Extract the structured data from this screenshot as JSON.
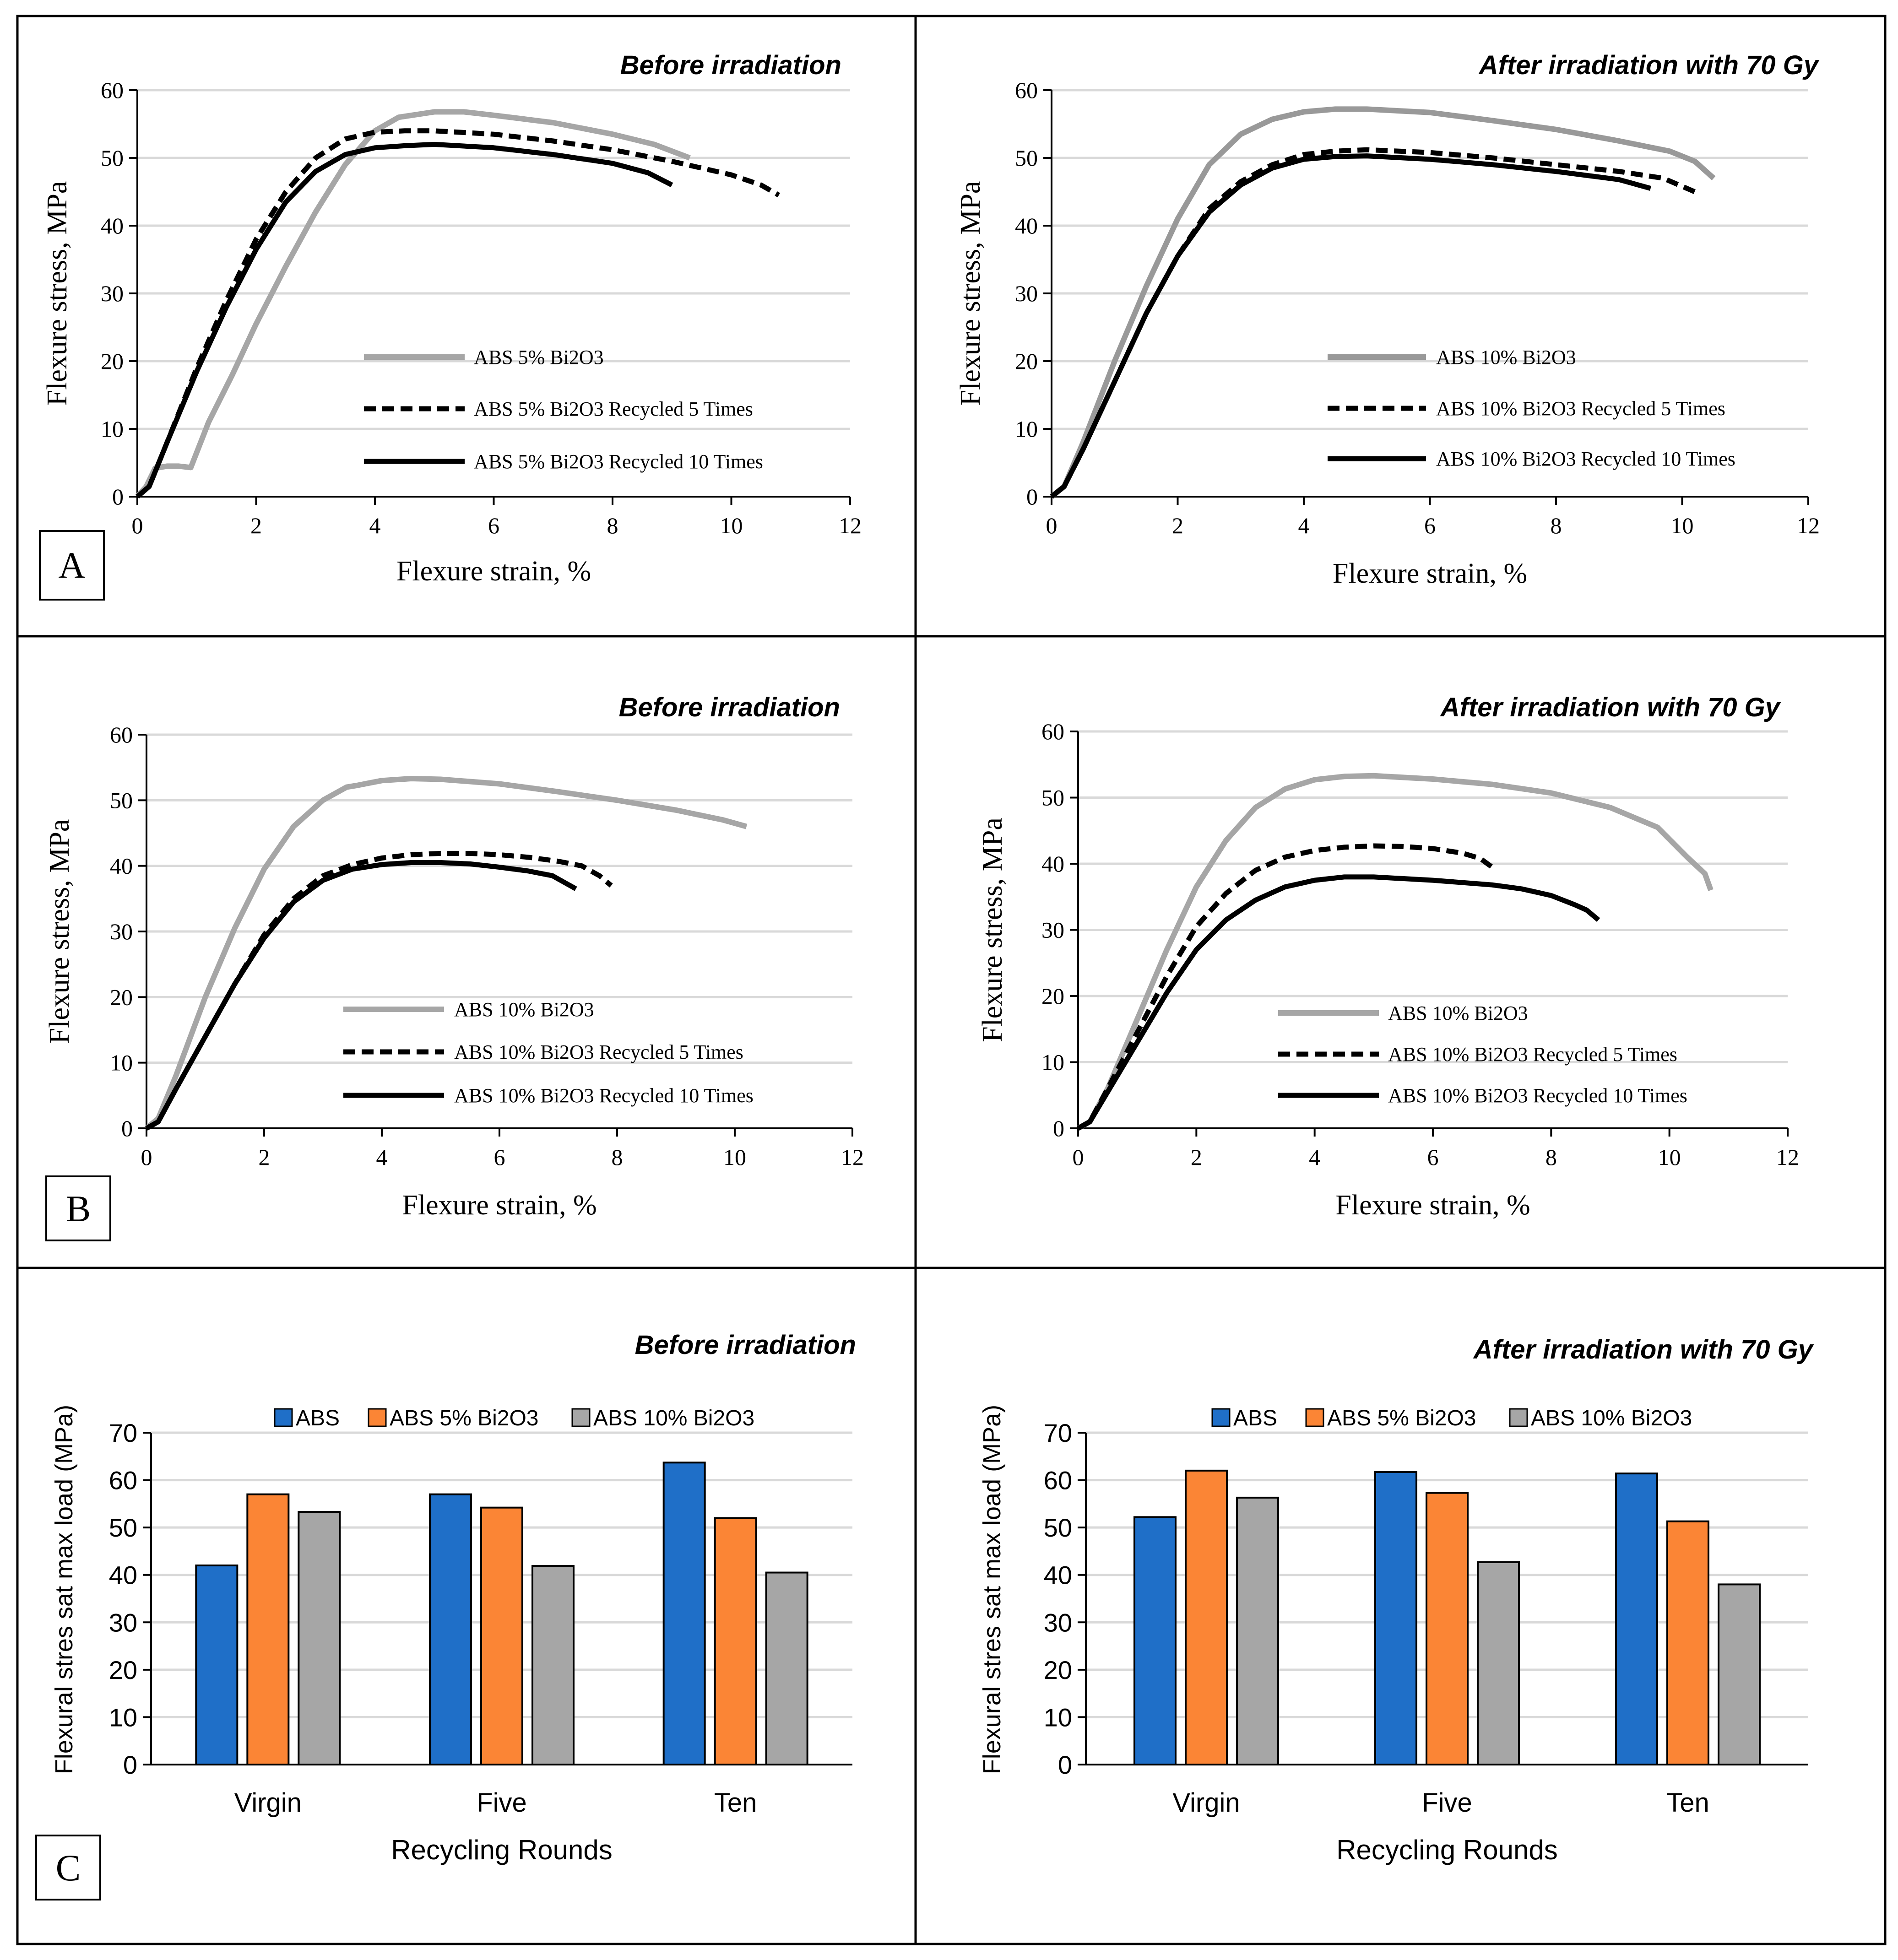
{
  "figure": {
    "panel_labels": [
      "A",
      "B",
      "C"
    ]
  },
  "chart_data": [
    {
      "id": "A-left",
      "type": "line",
      "title": "Before irradiation",
      "xlabel": "Flexure strain, %",
      "ylabel": "Flexure stress, MPa",
      "xlim": [
        0,
        12
      ],
      "ylim": [
        0,
        60
      ],
      "xticks": [
        "0",
        "2",
        "4",
        "6",
        "8",
        "10",
        "12"
      ],
      "yticks": [
        "0",
        "10",
        "20",
        "30",
        "40",
        "50",
        "60"
      ],
      "series": [
        {
          "name": "ABS 5% Bi2O3",
          "color": "#a6a6a6",
          "style": "solid",
          "x": [
            0,
            0.15,
            0.3,
            0.5,
            0.7,
            0.9,
            1.2,
            1.6,
            2.0,
            2.5,
            3.0,
            3.5,
            4.0,
            4.4,
            5.0,
            5.5,
            6.0,
            7.0,
            8.0,
            8.7,
            9.3
          ],
          "y": [
            0,
            1.5,
            4.2,
            4.5,
            4.5,
            4.3,
            11,
            18,
            25.5,
            34,
            42,
            49,
            54,
            56,
            56.8,
            56.8,
            56.3,
            55.2,
            53.5,
            52,
            50
          ]
        },
        {
          "name": "ABS 5% Bi2O3 Recycled 5 Times",
          "color": "#000000",
          "style": "dashed",
          "x": [
            0,
            0.2,
            0.5,
            1.0,
            1.5,
            2.0,
            2.5,
            3.0,
            3.5,
            4.0,
            4.5,
            5.0,
            6.0,
            7.0,
            8.0,
            9.0,
            9.5,
            10.0,
            10.5,
            10.8
          ],
          "y": [
            0,
            1.5,
            8,
            19,
            29,
            38,
            45,
            50,
            52.8,
            53.8,
            54,
            54,
            53.5,
            52.5,
            51.2,
            49.5,
            48.5,
            47.5,
            46,
            44.5
          ]
        },
        {
          "name": "ABS 5% Bi2O3 Recycled 10 Times",
          "color": "#000000",
          "style": "solid",
          "x": [
            0,
            0.2,
            0.5,
            1.0,
            1.5,
            2.0,
            2.5,
            3.0,
            3.5,
            4.0,
            4.5,
            5.0,
            6.0,
            7.0,
            8.0,
            8.6,
            9.0
          ],
          "y": [
            0,
            1.5,
            8,
            18.5,
            28,
            36.5,
            43.5,
            48,
            50.5,
            51.5,
            51.8,
            52,
            51.5,
            50.5,
            49.2,
            47.8,
            46
          ]
        }
      ],
      "legend": [
        "ABS 5% Bi2O3",
        "ABS 5% Bi2O3 Recycled 5 Times",
        "ABS 5% Bi2O3 Recycled 10 Times"
      ]
    },
    {
      "id": "A-right",
      "type": "line",
      "title": "After irradiation with 70 Gy",
      "xlabel": "Flexure strain, %",
      "ylabel": "Flexure stress, MPa",
      "xlim": [
        0,
        12
      ],
      "ylim": [
        0,
        60
      ],
      "xticks": [
        "0",
        "2",
        "4",
        "6",
        "8",
        "10",
        "12"
      ],
      "yticks": [
        "0",
        "10",
        "20",
        "30",
        "40",
        "50",
        "60"
      ],
      "series": [
        {
          "name": "ABS 10% Bi2O3",
          "color": "#999999",
          "style": "solid",
          "x": [
            0,
            0.2,
            0.5,
            1.0,
            1.5,
            2.0,
            2.5,
            3.0,
            3.5,
            4.0,
            4.5,
            5.0,
            6.0,
            7.0,
            8.0,
            9.0,
            9.8,
            10.2,
            10.5
          ],
          "y": [
            0,
            1.5,
            8,
            20,
            31,
            41,
            49,
            53.5,
            55.7,
            56.8,
            57.2,
            57.2,
            56.7,
            55.5,
            54.2,
            52.5,
            51,
            49.5,
            47
          ]
        },
        {
          "name": "ABS 10% Bi2O3 Recycled 5 Times",
          "color": "#000000",
          "style": "dashed",
          "x": [
            0,
            0.2,
            0.5,
            1.0,
            1.5,
            2.0,
            2.5,
            3.0,
            3.5,
            4.0,
            4.5,
            5.0,
            6.0,
            7.0,
            8.0,
            9.0,
            9.7,
            10.2
          ],
          "y": [
            0,
            1.5,
            7,
            17,
            27,
            35.5,
            42.5,
            46.5,
            49,
            50.5,
            51,
            51.2,
            50.8,
            50,
            49,
            48,
            47,
            45
          ]
        },
        {
          "name": "ABS 10% Bi2O3 Recycled 10 Times",
          "color": "#000000",
          "style": "solid",
          "x": [
            0,
            0.2,
            0.5,
            1.0,
            1.5,
            2.0,
            2.5,
            3.0,
            3.5,
            4.0,
            4.5,
            5.0,
            6.0,
            7.0,
            8.0,
            9.0,
            9.5
          ],
          "y": [
            0,
            1.5,
            7,
            17,
            27,
            35.5,
            42,
            46,
            48.5,
            49.8,
            50.2,
            50.3,
            49.8,
            49,
            48,
            46.8,
            45.5
          ]
        }
      ],
      "legend": [
        "ABS 10% Bi2O3",
        "ABS 10% Bi2O3 Recycled 5 Times",
        "ABS 10% Bi2O3 Recycled 10 Times"
      ]
    },
    {
      "id": "B-left",
      "type": "line",
      "title": "Before irradiation",
      "xlabel": "Flexure strain, %",
      "ylabel": "Flexure stress, MPa",
      "xlim": [
        0,
        12
      ],
      "ylim": [
        0,
        60
      ],
      "xticks": [
        "0",
        "2",
        "4",
        "6",
        "8",
        "10",
        "12"
      ],
      "yticks": [
        "0",
        "10",
        "20",
        "30",
        "40",
        "50",
        "60"
      ],
      "series": [
        {
          "name": "ABS 10% Bi2O3",
          "color": "#a6a6a6",
          "style": "solid",
          "x": [
            0,
            0.2,
            0.5,
            1.0,
            1.5,
            2.0,
            2.5,
            3.0,
            3.4,
            3.6,
            4.0,
            4.5,
            5.0,
            6.0,
            7.0,
            8.0,
            9.0,
            9.8,
            10.2
          ],
          "y": [
            0,
            1.5,
            8,
            20,
            30.5,
            39.5,
            46,
            50,
            52,
            52.3,
            53,
            53.3,
            53.2,
            52.5,
            51.3,
            50,
            48.5,
            47,
            46
          ]
        },
        {
          "name": "ABS 10% Bi2O3 Recycled 5 Times",
          "color": "#000000",
          "style": "dashed",
          "x": [
            0,
            0.2,
            0.5,
            1.0,
            1.5,
            2.0,
            2.5,
            3.0,
            3.5,
            4.0,
            4.5,
            5.0,
            5.5,
            6.0,
            6.5,
            7.0,
            7.4,
            7.7,
            7.9
          ],
          "y": [
            0,
            1,
            6,
            14,
            22,
            29.5,
            35,
            38.5,
            40.2,
            41.2,
            41.7,
            41.9,
            41.9,
            41.7,
            41.3,
            40.7,
            40,
            38.5,
            37
          ]
        },
        {
          "name": "ABS 10% Bi2O3 Recycled 10 Times",
          "color": "#000000",
          "style": "solid",
          "x": [
            0,
            0.2,
            0.5,
            1.0,
            1.5,
            2.0,
            2.5,
            3.0,
            3.5,
            4.0,
            4.5,
            5.0,
            5.5,
            6.0,
            6.5,
            6.9,
            7.1,
            7.3
          ],
          "y": [
            0,
            1,
            6,
            14,
            22,
            29,
            34.5,
            37.8,
            39.5,
            40.2,
            40.5,
            40.5,
            40.3,
            39.8,
            39.2,
            38.5,
            37.5,
            36.5
          ]
        }
      ],
      "legend": [
        "ABS 10% Bi2O3",
        "ABS 10% Bi2O3 Recycled 5 Times",
        "ABS 10% Bi2O3 Recycled 10 Times"
      ]
    },
    {
      "id": "B-right",
      "type": "line",
      "title": "After irradiation with 70 Gy",
      "xlabel": "Flexure strain, %",
      "ylabel": "Flexure stress, MPa",
      "xlim": [
        0,
        12
      ],
      "ylim": [
        0,
        60
      ],
      "xticks": [
        "0",
        "2",
        "4",
        "6",
        "8",
        "10",
        "12"
      ],
      "yticks": [
        "0",
        "10",
        "20",
        "30",
        "40",
        "50",
        "60"
      ],
      "series": [
        {
          "name": "ABS 10% Bi2O3",
          "color": "#a6a6a6",
          "style": "solid",
          "x": [
            0,
            0.2,
            0.5,
            1.0,
            1.5,
            2.0,
            2.5,
            3.0,
            3.5,
            4.0,
            4.5,
            5.0,
            6.0,
            7.0,
            8.0,
            9.0,
            9.8,
            10.3,
            10.6,
            10.7
          ],
          "y": [
            0,
            1,
            6,
            16.5,
            27,
            36.5,
            43.5,
            48.5,
            51.3,
            52.7,
            53.2,
            53.3,
            52.8,
            52,
            50.7,
            48.5,
            45.5,
            41,
            38.5,
            36
          ]
        },
        {
          "name": "ABS 10% Bi2O3 Recycled 5 Times",
          "color": "#000000",
          "style": "dashed",
          "x": [
            0,
            0.2,
            0.5,
            1.0,
            1.5,
            2.0,
            2.5,
            3.0,
            3.5,
            4.0,
            4.5,
            5.0,
            5.5,
            6.0,
            6.5,
            6.8,
            7.0
          ],
          "y": [
            0,
            1,
            6,
            14.5,
            23,
            30.5,
            35.5,
            39,
            41,
            42,
            42.5,
            42.7,
            42.6,
            42.3,
            41.6,
            40.8,
            39.5
          ]
        },
        {
          "name": "ABS 10% Bi2O3 Recycled 10 Times",
          "color": "#000000",
          "style": "solid",
          "x": [
            0,
            0.2,
            0.5,
            1.0,
            1.5,
            2.0,
            2.5,
            3.0,
            3.5,
            4.0,
            4.5,
            5.0,
            6.0,
            7.0,
            7.5,
            8.0,
            8.4,
            8.6,
            8.8
          ],
          "y": [
            0,
            1,
            5.5,
            13,
            20.5,
            27,
            31.5,
            34.5,
            36.5,
            37.5,
            38,
            38,
            37.5,
            36.8,
            36.2,
            35.2,
            33.8,
            33,
            31.5
          ]
        }
      ],
      "legend": [
        "ABS 10% Bi2O3",
        "ABS 10% Bi2O3 Recycled 5 Times",
        "ABS 10% Bi2O3 Recycled 10 Times"
      ]
    },
    {
      "id": "C-left",
      "type": "bar",
      "title": "Before irradiation",
      "xlabel": "Recycling Rounds",
      "ylabel": "Flexural stres sat max load (MPa)",
      "ylim": [
        0,
        70
      ],
      "yticks": [
        "0",
        "10",
        "20",
        "30",
        "40",
        "50",
        "60",
        "70"
      ],
      "categories": [
        "Virgin",
        "Five",
        "Ten"
      ],
      "series": [
        {
          "name": "ABS",
          "color": "#1f6fc8",
          "values": [
            42,
            57,
            63.7
          ]
        },
        {
          "name": "ABS 5% Bi2O3",
          "color": "#fb8535",
          "values": [
            57,
            54.2,
            52
          ]
        },
        {
          "name": "ABS 10% Bi2O3",
          "color": "#a6a6a6",
          "values": [
            53.3,
            41.9,
            40.5
          ]
        }
      ],
      "legend": [
        "ABS",
        "ABS 5% Bi2O3",
        "ABS 10% Bi2O3"
      ]
    },
    {
      "id": "C-right",
      "type": "bar",
      "title": "After irradiation with 70 Gy",
      "xlabel": "Recycling Rounds",
      "ylabel": "Flexural stres sat max load (MPa)",
      "ylim": [
        0,
        70
      ],
      "yticks": [
        "0",
        "10",
        "20",
        "30",
        "40",
        "50",
        "60",
        "70"
      ],
      "categories": [
        "Virgin",
        "Five",
        "Ten"
      ],
      "series": [
        {
          "name": "ABS",
          "color": "#1f6fc8",
          "values": [
            52.2,
            61.7,
            61.4
          ]
        },
        {
          "name": "ABS 5% Bi2O3",
          "color": "#fb8535",
          "values": [
            62,
            57.3,
            51.3
          ]
        },
        {
          "name": "ABS 10% Bi2O3",
          "color": "#a6a6a6",
          "values": [
            56.3,
            42.7,
            38
          ]
        }
      ],
      "legend": [
        "ABS",
        "ABS 5% Bi2O3",
        "ABS 10% Bi2O3"
      ]
    }
  ]
}
